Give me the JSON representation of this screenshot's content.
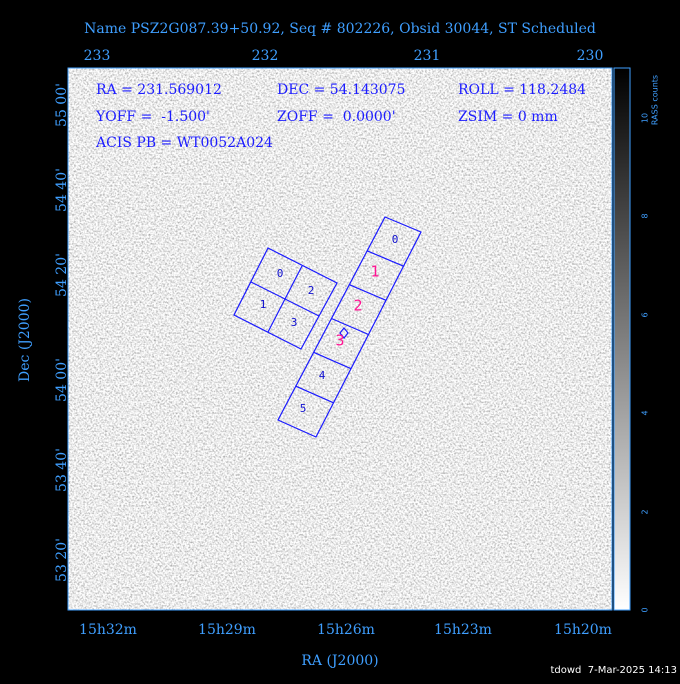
{
  "title": "Name PSZ2G087.39+50.92, Seq # 802226, Obsid 30044, ST Scheduled",
  "top_axis": {
    "ticks": [
      "233",
      "232",
      "231",
      "230"
    ]
  },
  "left_axis": {
    "label": "Dec (J2000)",
    "ticks": [
      "55 00'",
      "54 40'",
      "54 20'",
      "54 00'",
      "53 40'",
      "53 20'"
    ]
  },
  "bottom_axis": {
    "label": "RA (J2000)",
    "ticks": [
      "15h32m",
      "15h29m",
      "15h26m",
      "15h23m",
      "15h20m"
    ]
  },
  "colorbar": {
    "label": "RASS counts",
    "ticks": [
      "0",
      "2",
      "4",
      "6",
      "8",
      "10"
    ]
  },
  "info": {
    "lines": [
      [
        "RA = 231.569012",
        "DEC = 54.143075",
        "ROLL = 118.2484"
      ],
      [
        "YOFF =  -1.500'",
        "ZOFF =  0.0000'",
        "ZSIM = 0 mm"
      ],
      [
        "ACIS PB = WT0052A024"
      ]
    ]
  },
  "chips": {
    "acis_i": [
      "0",
      "2",
      "1",
      "3"
    ],
    "acis_s": [
      "0",
      "1",
      "2",
      "3",
      "4",
      "5"
    ]
  },
  "footer": "tdowd  7-Mar-2025 14:13"
}
